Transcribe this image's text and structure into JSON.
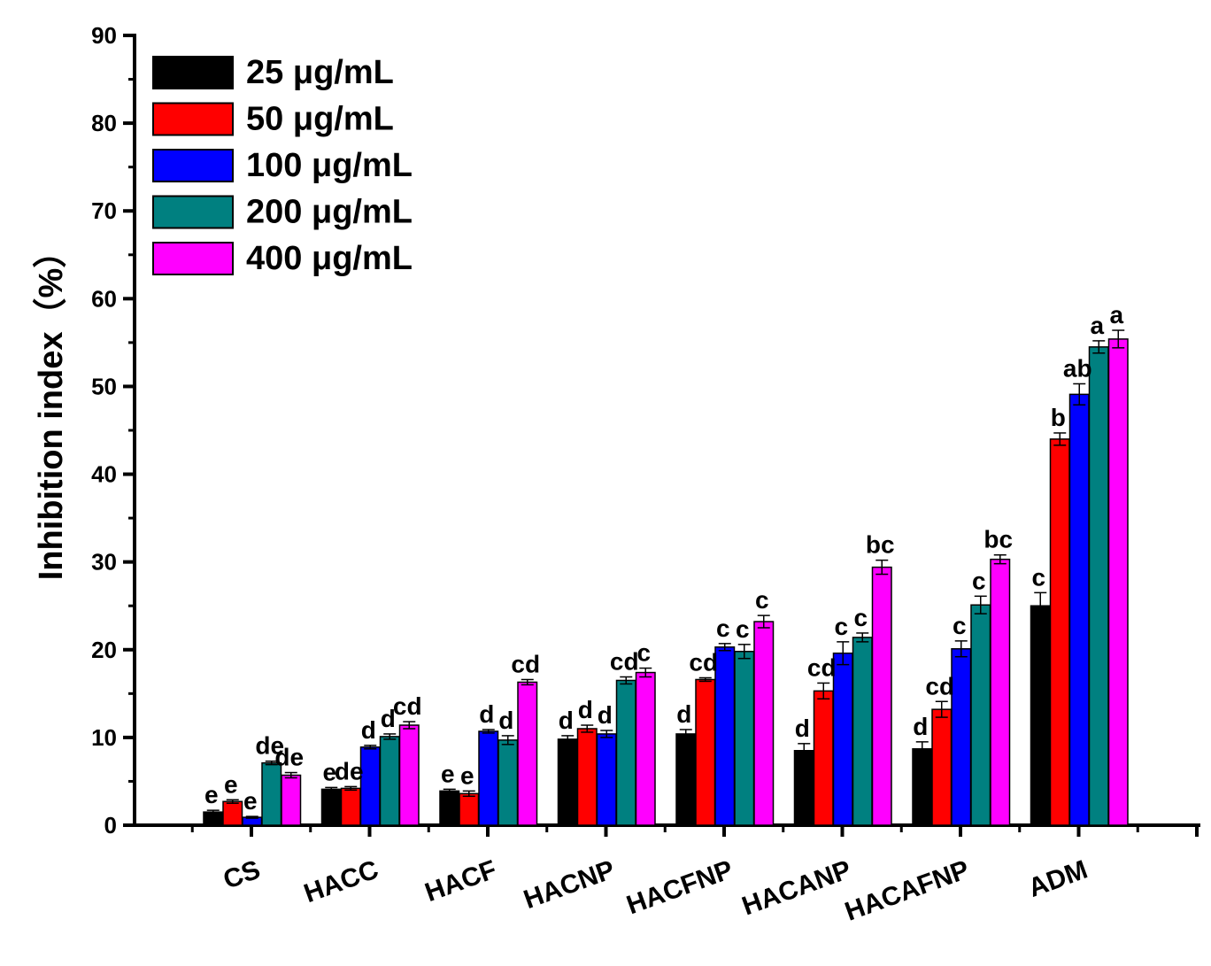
{
  "chart_data": {
    "type": "bar",
    "ylabel": "Inhibition index（%）",
    "xlabel": "",
    "ylim": [
      0,
      90
    ],
    "yticks": [
      0,
      10,
      20,
      30,
      40,
      50,
      60,
      70,
      80,
      90
    ],
    "categories": [
      "CS",
      "HACC",
      "HACF",
      "HACNP",
      "HACFNP",
      "HACANP",
      "HACAFNP",
      "ADM"
    ],
    "legend_position": "top-left",
    "series": [
      {
        "name": "25 μg/mL",
        "color": "#000000",
        "values": [
          1.5,
          4.1,
          3.9,
          9.8,
          10.4,
          8.5,
          8.7,
          25.0
        ],
        "errors": [
          0.2,
          0.2,
          0.2,
          0.4,
          0.5,
          0.8,
          0.8,
          1.5
        ],
        "labels": [
          "e",
          "e",
          "e",
          "d",
          "d",
          "d",
          "d",
          "c"
        ]
      },
      {
        "name": "50 μg/mL",
        "color": "#ff0000",
        "values": [
          2.7,
          4.2,
          3.6,
          11.0,
          16.6,
          15.3,
          13.2,
          44.0
        ],
        "errors": [
          0.2,
          0.2,
          0.3,
          0.4,
          0.2,
          0.9,
          0.9,
          0.7
        ],
        "labels": [
          "e",
          "de",
          "e",
          "d",
          "cd",
          "cd",
          "cd",
          "b"
        ]
      },
      {
        "name": "100 μg/mL",
        "color": "#0000ff",
        "values": [
          0.9,
          8.9,
          10.7,
          10.4,
          20.3,
          19.6,
          20.1,
          49.1
        ],
        "errors": [
          0.1,
          0.2,
          0.2,
          0.4,
          0.4,
          1.3,
          0.9,
          1.2
        ],
        "labels": [
          "e",
          "d",
          "d",
          "d",
          "c",
          "c",
          "c",
          "ab"
        ]
      },
      {
        "name": "200 μg/mL",
        "color": "#008080",
        "values": [
          7.1,
          10.1,
          9.7,
          16.5,
          19.8,
          21.4,
          25.1,
          54.5
        ],
        "errors": [
          0.2,
          0.3,
          0.5,
          0.4,
          0.8,
          0.5,
          1.0,
          0.7
        ],
        "labels": [
          "de",
          "d",
          "d",
          "cd",
          "c",
          "c",
          "c",
          "a"
        ]
      },
      {
        "name": "400 μg/mL",
        "color": "#ff00ff",
        "values": [
          5.7,
          11.4,
          16.3,
          17.4,
          23.2,
          29.4,
          30.3,
          55.4
        ],
        "errors": [
          0.3,
          0.4,
          0.3,
          0.5,
          0.7,
          0.8,
          0.5,
          1.0
        ],
        "labels": [
          "de",
          "cd",
          "cd",
          "c",
          "c",
          "bc",
          "bc",
          "a"
        ]
      }
    ]
  }
}
